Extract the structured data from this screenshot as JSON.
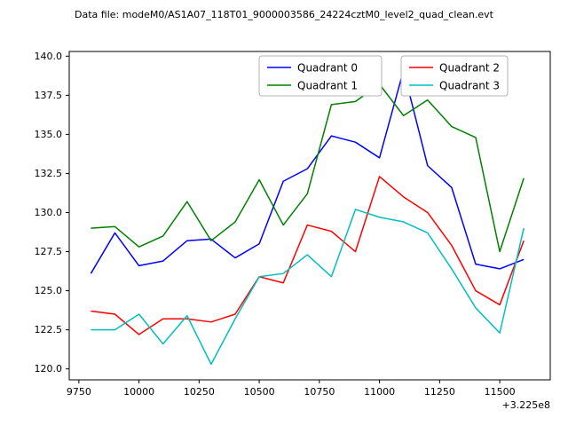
{
  "header": {
    "title": "Data file: modeM0/AS1A07_118T01_9000003586_24224cztM0_level2_quad_clean.evt"
  },
  "chart_data": {
    "type": "line",
    "title": "Data file: modeM0/AS1A07_118T01_9000003586_24224cztM0_level2_quad_clean.evt",
    "xlabel": "",
    "ylabel": "",
    "grid": false,
    "x_offset_label": "+3.225e8",
    "xlim": [
      9710,
      11710
    ],
    "ylim": [
      119.3,
      140.3
    ],
    "xticks": [
      9750,
      10000,
      10250,
      10500,
      10750,
      11000,
      11250,
      11500
    ],
    "yticks": [
      120.0,
      122.5,
      125.0,
      127.5,
      130.0,
      132.5,
      135.0,
      137.5,
      140.0
    ],
    "x": [
      9800,
      9900,
      10000,
      10100,
      10200,
      10300,
      10400,
      10500,
      10600,
      10700,
      10800,
      10900,
      11000,
      11100,
      11200,
      11300,
      11400,
      11500,
      11600
    ],
    "series": [
      {
        "name": "Quadrant 0",
        "color": "#0000ff",
        "values": [
          126.1,
          128.7,
          126.6,
          126.9,
          128.2,
          128.3,
          127.1,
          128.0,
          132.0,
          132.8,
          134.9,
          134.5,
          133.5,
          139.1,
          133.0,
          131.6,
          126.7,
          126.4,
          127.0
        ]
      },
      {
        "name": "Quadrant 1",
        "color": "#008000",
        "values": [
          129.0,
          129.1,
          127.8,
          128.5,
          130.7,
          128.2,
          129.4,
          132.1,
          129.2,
          131.2,
          136.9,
          137.1,
          138.2,
          136.2,
          137.2,
          135.5,
          134.8,
          127.5,
          132.2
        ]
      },
      {
        "name": "Quadrant 2",
        "color": "#ff0000",
        "values": [
          123.7,
          123.5,
          122.2,
          123.2,
          123.2,
          123.0,
          123.5,
          125.9,
          125.5,
          129.2,
          128.8,
          127.5,
          132.3,
          131.0,
          130.0,
          127.9,
          125.0,
          124.1,
          128.2
        ]
      },
      {
        "name": "Quadrant 3",
        "color": "#00bfbf",
        "values": [
          122.5,
          122.5,
          123.5,
          121.6,
          123.4,
          120.3,
          123.2,
          125.9,
          126.1,
          127.3,
          125.9,
          130.2,
          129.7,
          129.4,
          128.7,
          126.4,
          123.9,
          122.3,
          129.0
        ]
      }
    ],
    "legend": {
      "position": "upper center",
      "boxes": [
        [
          "Quadrant 0",
          "Quadrant 1"
        ],
        [
          "Quadrant 2",
          "Quadrant 3"
        ]
      ]
    }
  }
}
